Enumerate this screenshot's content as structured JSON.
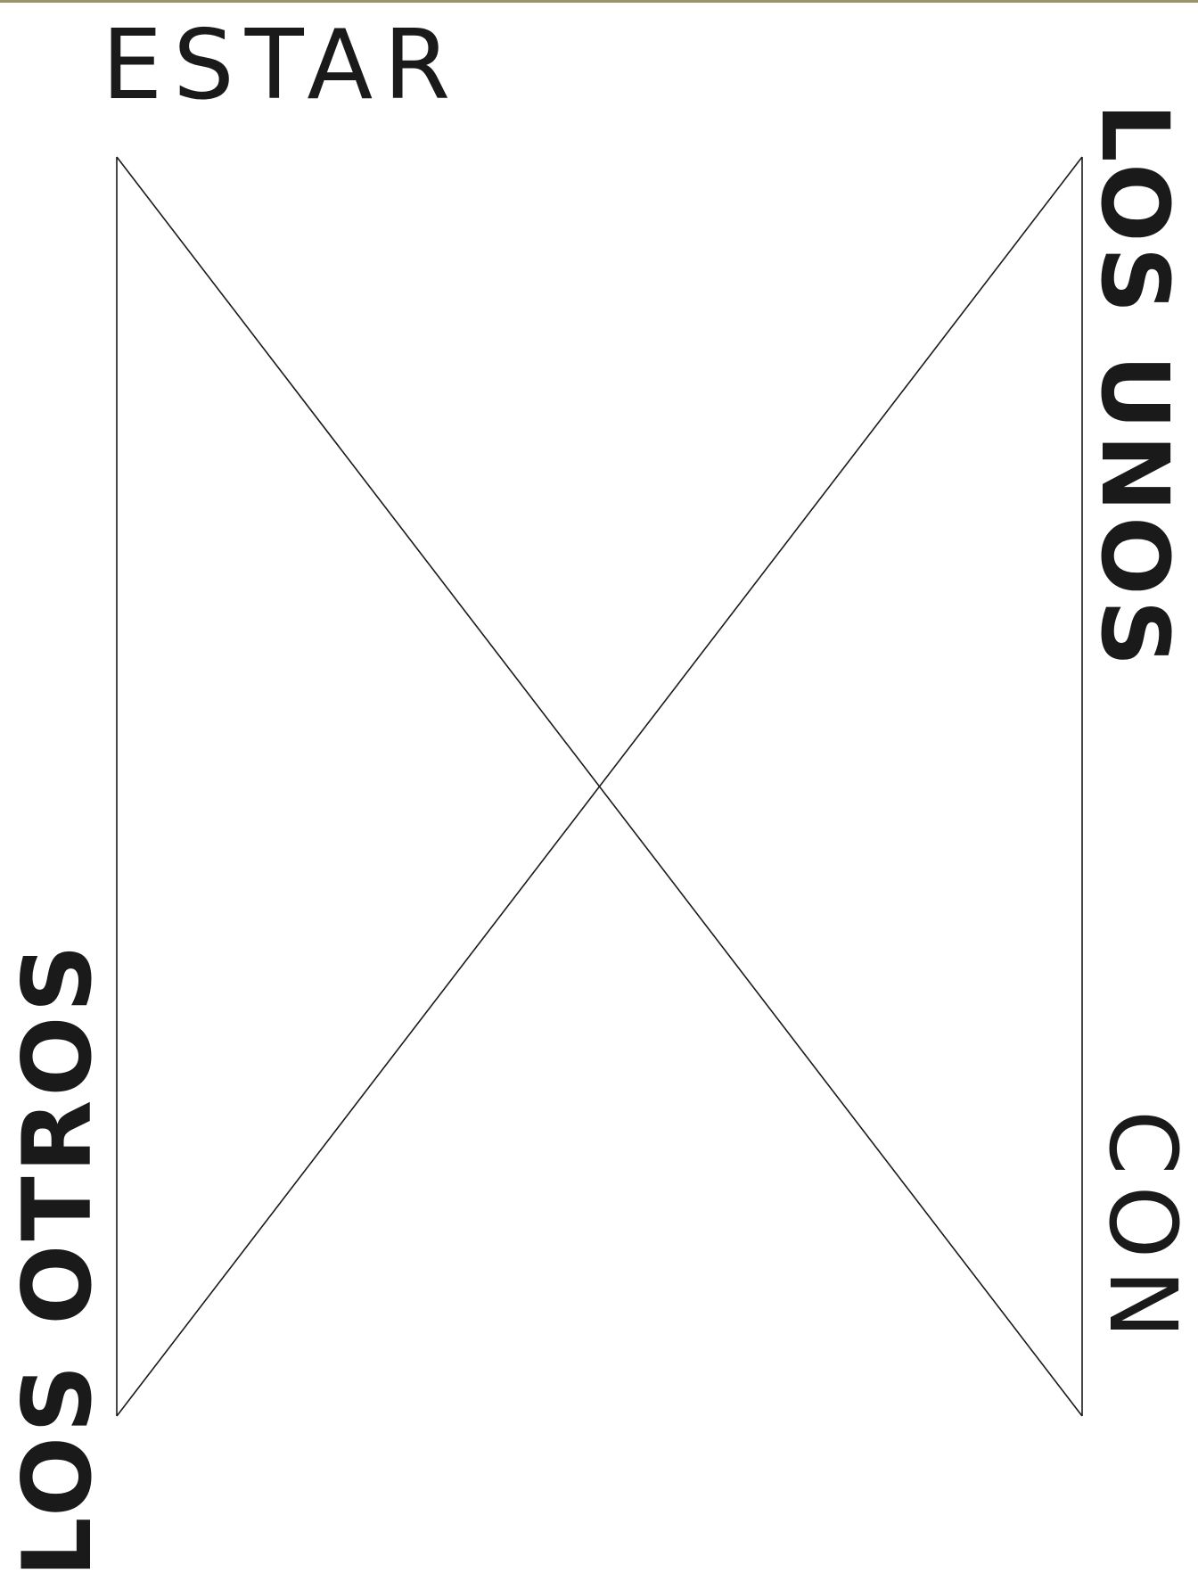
{
  "colors": {
    "background": "#ffffff",
    "ink": "#1a1a1a",
    "line": "#1a1a1a",
    "top_rule": "#9a9468"
  },
  "words": {
    "estar": "ESTAR",
    "los_unos": "LOS UNOS",
    "con": "CON",
    "los_otros": "LOS OTROS"
  }
}
